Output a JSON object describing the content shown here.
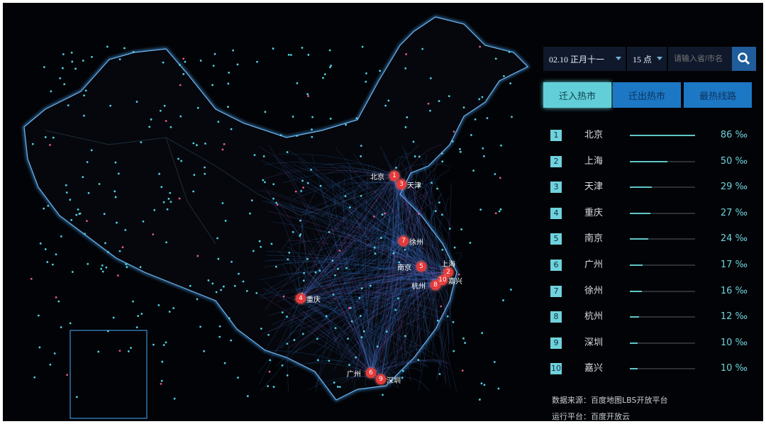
{
  "controls": {
    "date": "02.10 正月十一",
    "hour": "15 点",
    "search_placeholder": "请输入省/市名",
    "search_icon": "search-icon"
  },
  "tabs": [
    {
      "label": "迁入热市",
      "active": true
    },
    {
      "label": "迁出热市",
      "active": false
    },
    {
      "label": "最热线路",
      "active": false
    }
  ],
  "ranking": [
    {
      "rank": "1",
      "city": "北京",
      "value": 86,
      "pct": "86 ‰"
    },
    {
      "rank": "2",
      "city": "上海",
      "value": 50,
      "pct": "50 ‰"
    },
    {
      "rank": "3",
      "city": "天津",
      "value": 29,
      "pct": "29 ‰"
    },
    {
      "rank": "4",
      "city": "重庆",
      "value": 27,
      "pct": "27 ‰"
    },
    {
      "rank": "5",
      "city": "南京",
      "value": 24,
      "pct": "24 ‰"
    },
    {
      "rank": "6",
      "city": "广州",
      "value": 17,
      "pct": "17 ‰"
    },
    {
      "rank": "7",
      "city": "徐州",
      "value": 16,
      "pct": "16 ‰"
    },
    {
      "rank": "8",
      "city": "杭州",
      "value": 12,
      "pct": "12 ‰"
    },
    {
      "rank": "9",
      "city": "深圳",
      "value": 10,
      "pct": "10 ‰"
    },
    {
      "rank": "10",
      "city": "嘉兴",
      "value": 10,
      "pct": "10 ‰"
    }
  ],
  "notes": {
    "source": "数据来源：百度地图LBS开放平台",
    "platform": "运行平台：百度开放云"
  },
  "map_markers": [
    {
      "rank": "1",
      "city": "北京"
    },
    {
      "rank": "3",
      "city": "天津"
    },
    {
      "rank": "7",
      "city": "徐州"
    },
    {
      "rank": "5",
      "city": "南京"
    },
    {
      "rank": "2",
      "city": "上海"
    },
    {
      "rank": "10",
      "city": "嘉兴"
    },
    {
      "rank": "8",
      "city": "杭州"
    },
    {
      "rank": "4",
      "city": "重庆"
    },
    {
      "rank": "6",
      "city": "广州"
    },
    {
      "rank": "9",
      "city": "深圳"
    }
  ],
  "colors": {
    "background": "#020306",
    "border": "#3d8fd8",
    "flow": "#3a7fe0",
    "accent": "#6fd2dc",
    "marker": "#e63a3a"
  }
}
